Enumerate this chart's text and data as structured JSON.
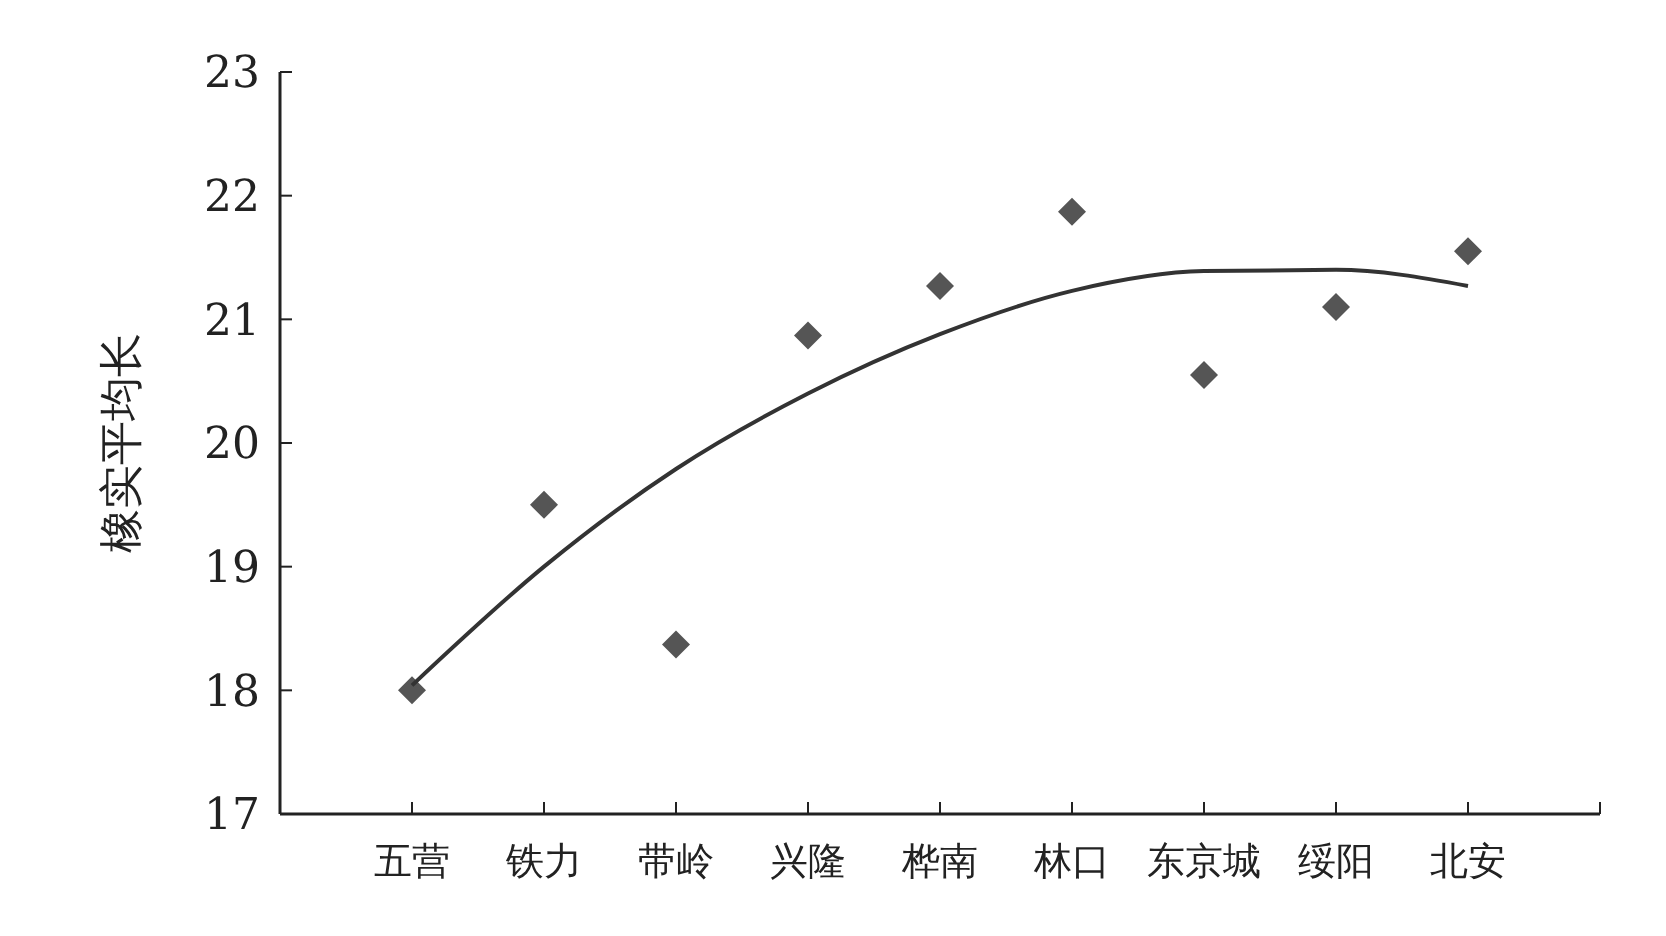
{
  "chart_data": {
    "type": "scatter",
    "ylabel": "橡实平均长",
    "categories": [
      "五营",
      "铁力",
      "带岭",
      "兴隆",
      "桦南",
      "林口",
      "东京城",
      "绥阳",
      "北安"
    ],
    "ylim": [
      17,
      23
    ],
    "yticks": [
      17,
      18,
      19,
      20,
      21,
      22,
      23
    ],
    "grid": false,
    "marker": "diamond",
    "series": [
      {
        "color": "#555555",
        "values": [
          18.0,
          19.5,
          18.37,
          20.87,
          21.27,
          21.87,
          20.55,
          21.1,
          21.55
        ]
      },
      {
        "type": "line",
        "color": "#333333",
        "marker": "none",
        "line_style": "solid",
        "values": [
          18.04,
          19.0,
          19.79,
          20.4,
          20.88,
          21.23,
          21.39,
          21.4,
          21.27
        ]
      }
    ]
  }
}
